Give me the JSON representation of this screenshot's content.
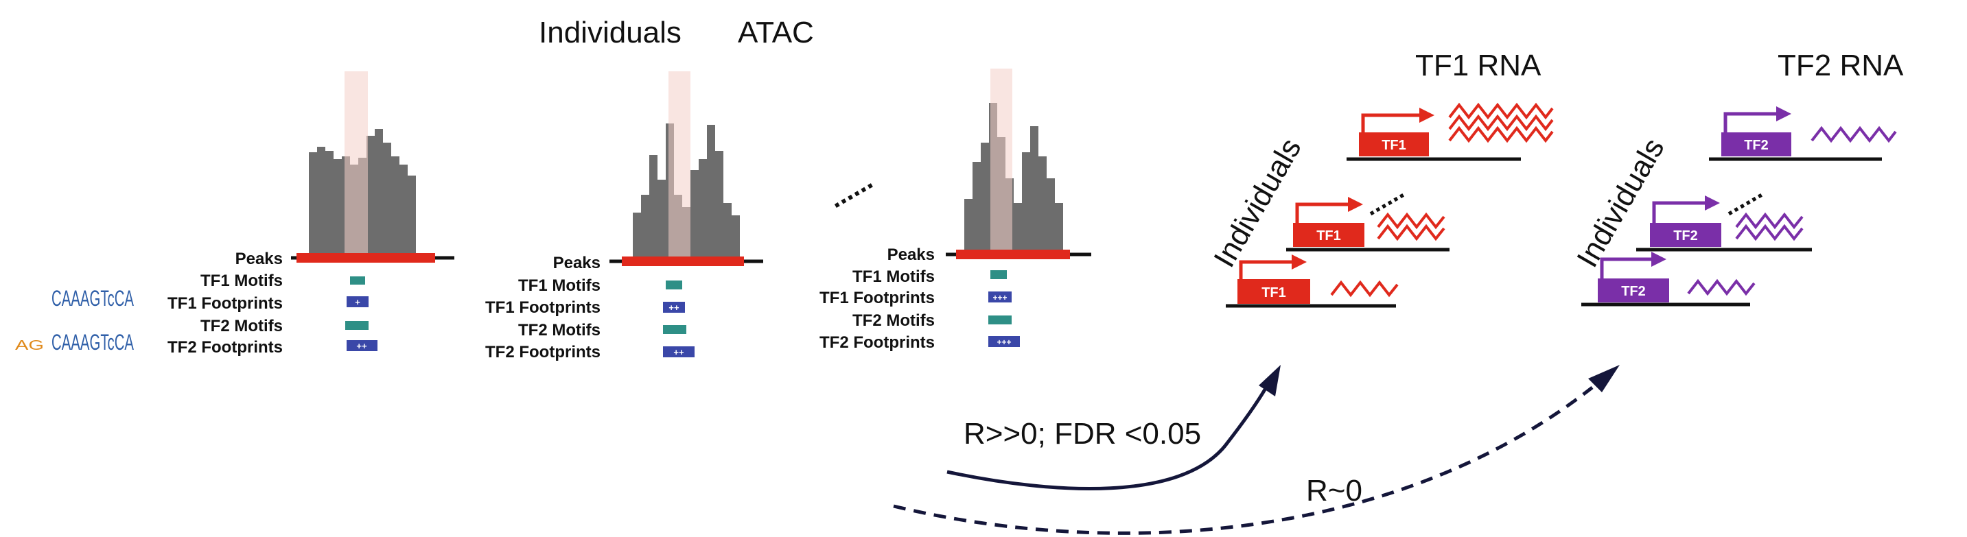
{
  "header": {
    "individuals": "Individuals",
    "atac": "ATAC"
  },
  "ellipsis": "......",
  "rows": {
    "peaks": "Peaks",
    "tf1_motifs": "TF1 Motifs",
    "tf1_footprints": "TF1 Footprints",
    "tf2_motifs": "TF2 Motifs",
    "tf2_footprints": "TF2 Footprints"
  },
  "footprint_marks": [
    "+",
    "++",
    "+++"
  ],
  "motif_logos": {
    "tf1": "CAAAGTcCA",
    "tf2_prefix": "AG",
    "tf2": "CAAAGTcCA"
  },
  "tf1_panel": {
    "title": "TF1 RNA",
    "gene": "TF1",
    "side_label": "Individuals"
  },
  "tf2_panel": {
    "title": "TF2 RNA",
    "gene": "TF2",
    "side_label": "Individuals"
  },
  "correlations": {
    "tf1": "R>>0; FDR <0.05",
    "tf2": "R~0"
  },
  "colors": {
    "bars": "#6d6d6d",
    "peak": "#e0291c",
    "highlight": "#f4cfc9",
    "motif": "#2e8f86",
    "footprint": "#3a47a8",
    "tf1": "#e0291c",
    "tf2": "#7a2fa8",
    "arrow": "#14163a"
  }
}
